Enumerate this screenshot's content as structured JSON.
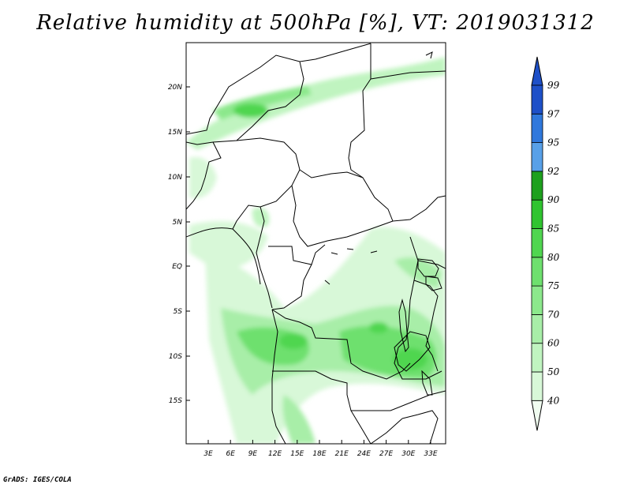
{
  "title": "Relative humidity at 500hPa [%], VT: 2019031312",
  "credit": "GrADS: IGES/COLA",
  "y_ticks": [
    "20N",
    "15N",
    "10N",
    "5N",
    "EQ",
    "5S",
    "10S",
    "15S"
  ],
  "x_ticks": [
    "3E",
    "6E",
    "9E",
    "12E",
    "15E",
    "18E",
    "21E",
    "24E",
    "27E",
    "30E",
    "33E"
  ],
  "colorbar": {
    "levels": [
      "40",
      "50",
      "60",
      "70",
      "75",
      "80",
      "85",
      "90",
      "92",
      "95",
      "97",
      "99"
    ],
    "colors": [
      "#f0fcf0",
      "#d8f8d8",
      "#c0f4c0",
      "#a8eea8",
      "#8ce88c",
      "#6ee06e",
      "#50d650",
      "#30c430",
      "#1ea01e",
      "#58a0e8",
      "#3078dc",
      "#1e50c8"
    ]
  }
}
